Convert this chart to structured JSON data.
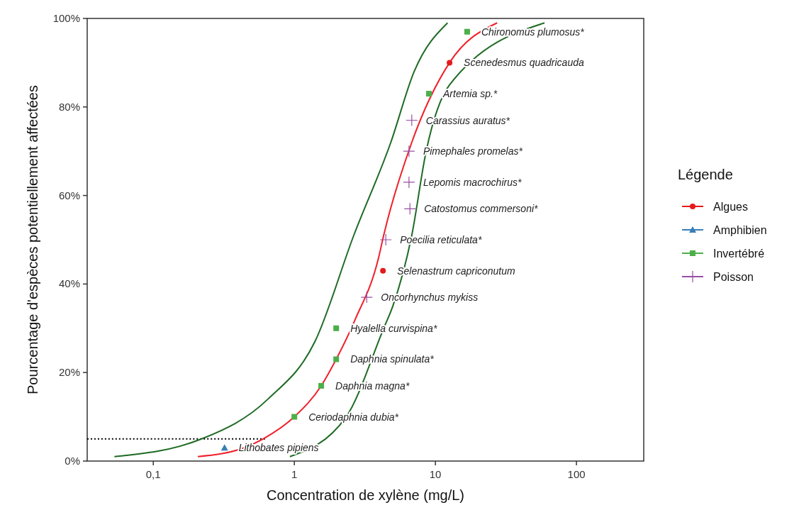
{
  "chart_data": {
    "type": "scatter",
    "xlabel": "Concentration de xylène (mg/L)",
    "ylabel": "Pourcentage d'espèces potentiellement affectées",
    "legend_title": "Légende",
    "legend": "right",
    "log": "x",
    "grid": false,
    "xlim": [
      0.034,
      300
    ],
    "xticks": [
      {
        "value": 0.1,
        "label": "0,1"
      },
      1,
      10,
      100
    ],
    "ylim": [
      0,
      100
    ],
    "yticks": [
      {
        "value": 0,
        "label": "0%"
      },
      {
        "value": 20,
        "label": "20%"
      },
      {
        "value": 40,
        "label": "40%"
      },
      {
        "value": 60,
        "label": "60%"
      },
      {
        "value": 80,
        "label": "80%"
      },
      {
        "value": 100,
        "label": "100%"
      }
    ],
    "series": [
      {
        "type": "line",
        "color": "#000000",
        "marker": "none",
        "line_style": "dotted",
        "x": [
          0.034,
          0.62
        ],
        "values": [
          5,
          5
        ]
      },
      {
        "type": "line",
        "color": "#1e6b24",
        "marker": "none",
        "x": [
          0.053,
          0.22,
          0.65,
          1.4,
          2.64,
          4.83,
          7.07,
          12.2
        ],
        "values": [
          1,
          5,
          14,
          27,
          51,
          72,
          88,
          99
        ]
      },
      {
        "type": "line",
        "color": "#1e6b24",
        "marker": "none",
        "x": [
          0.93,
          2.33,
          4.3,
          4.99,
          6.8,
          8.6,
          12.6,
          59.4
        ],
        "values": [
          1,
          10,
          30,
          35,
          51,
          70,
          85,
          99
        ]
      },
      {
        "type": "line",
        "color": "#f0202a",
        "marker": "none",
        "x": [
          0.207,
          0.44,
          0.6,
          1.0,
          1.55,
          1.98,
          2.7,
          3.96,
          4.3,
          6.8,
          12.6,
          27.4
        ],
        "values": [
          1,
          3,
          5,
          10,
          17,
          23,
          32,
          46,
          51,
          72,
          90,
          99
        ]
      },
      {
        "name": "Algues",
        "color": "#e41a1c",
        "marker": "circle",
        "x": [
          4.25,
          12.6
        ],
        "values": [
          43,
          90
        ]
      },
      {
        "name": "Amphibien",
        "color": "#377eb8",
        "marker": "triangle",
        "x": [
          0.32
        ],
        "values": [
          3
        ]
      },
      {
        "name": "Invertébré",
        "color": "#4daf4a",
        "marker": "square",
        "x": [
          1.0,
          1.55,
          1.98,
          1.98,
          9.0,
          16.8
        ],
        "values": [
          10,
          17,
          23,
          30,
          83,
          97
        ]
      },
      {
        "name": "Poisson",
        "color": "#984ea3",
        "marker": "cross",
        "x": [
          3.26,
          4.45,
          6.6,
          6.5,
          6.5,
          6.8
        ],
        "values": [
          37,
          50,
          57,
          63,
          70,
          77
        ]
      }
    ],
    "annotations": [
      {
        "text": "Lithobates pipiens",
        "x": 0.32,
        "y": 3
      },
      {
        "text": "Ceriodaphnia dubia*",
        "x": 1.0,
        "y": 10
      },
      {
        "text": "Daphnia magna*",
        "x": 1.55,
        "y": 17
      },
      {
        "text": "Daphnia spinulata*",
        "x": 1.98,
        "y": 23
      },
      {
        "text": "Hyalella curvispina*",
        "x": 1.98,
        "y": 30
      },
      {
        "text": "Oncorhynchus mykiss",
        "x": 3.26,
        "y": 37
      },
      {
        "text": "Selenastrum capriconutum",
        "x": 4.25,
        "y": 43
      },
      {
        "text": "Poecilia reticulata*",
        "x": 4.45,
        "y": 50
      },
      {
        "text": "Catostomus commersoni*",
        "x": 6.6,
        "y": 57
      },
      {
        "text": "Lepomis macrochirus*",
        "x": 6.5,
        "y": 63
      },
      {
        "text": "Pimephales promelas*",
        "x": 6.5,
        "y": 70
      },
      {
        "text": "Carassius auratus*",
        "x": 6.8,
        "y": 77
      },
      {
        "text": "Artemia sp.*",
        "x": 9.0,
        "y": 83
      },
      {
        "text": "Scenedesmus quadricauda",
        "x": 12.6,
        "y": 90
      },
      {
        "text": "Chironomus plumosus*",
        "x": 16.8,
        "y": 97
      }
    ]
  }
}
